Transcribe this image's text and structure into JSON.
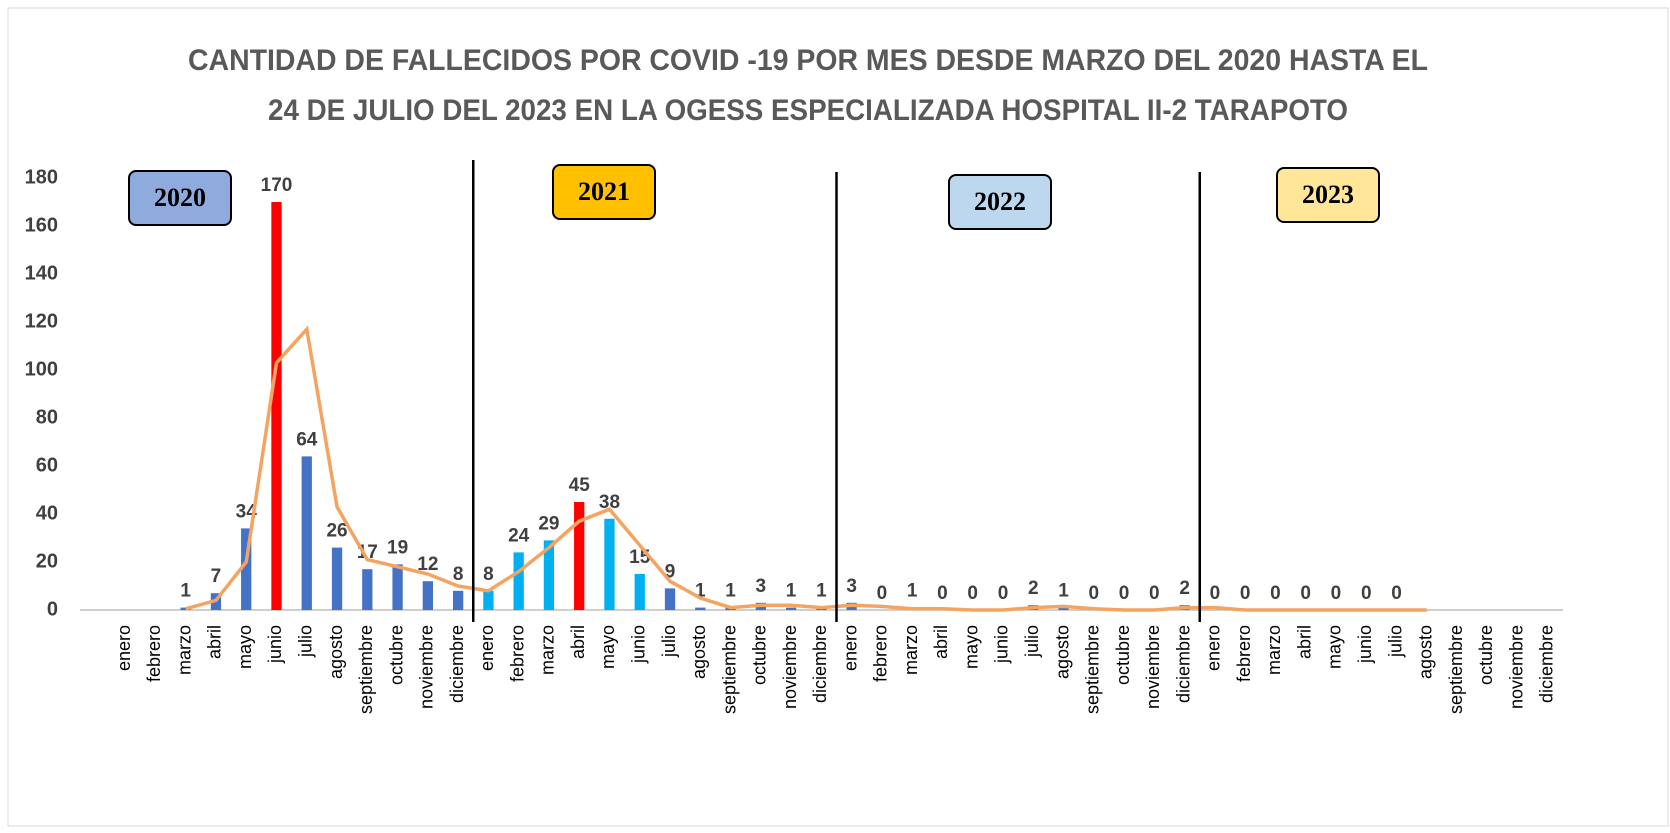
{
  "chart_data": {
    "type": "bar",
    "title": [
      "CANTIDAD DE FALLECIDOS POR COVID -19  POR MES  DESDE MARZO DEL 2020 HASTA EL",
      "24 DE JULIO DEL 2023 EN LA OGESS ESPECIALIZADA HOSPITAL II-2 TARAPOTO"
    ],
    "categories": [
      "enero",
      "febrero",
      "marzo",
      "abril",
      "mayo",
      "junio",
      "julio",
      "agosto",
      "septiembre",
      "octubre",
      "noviembre",
      "diciembre",
      "enero",
      "febrero",
      "marzo",
      "abril",
      "mayo",
      "junio",
      "julio",
      "agosto",
      "septiembre",
      "octubre",
      "noviembre",
      "diciembre",
      "enero",
      "febrero",
      "marzo",
      "abril",
      "mayo",
      "junio",
      "julio",
      "agosto",
      "septiembre",
      "octubre",
      "noviembre",
      "diciembre",
      "enero",
      "febrero",
      "marzo",
      "abril",
      "mayo",
      "junio",
      "julio",
      "agosto",
      "septiembre",
      "octubre",
      "noviembre",
      "diciembre"
    ],
    "values": [
      null,
      null,
      1,
      7,
      34,
      170,
      64,
      26,
      17,
      19,
      12,
      8,
      8,
      24,
      29,
      45,
      38,
      15,
      9,
      1,
      1,
      3,
      1,
      1,
      3,
      0,
      1,
      0,
      0,
      0,
      2,
      1,
      0,
      0,
      0,
      2,
      0,
      0,
      0,
      0,
      0,
      0,
      0,
      null,
      null,
      null,
      null,
      null
    ],
    "colors": [
      "#4472c4",
      "#4472c4",
      "#4472c4",
      "#4472c4",
      "#4472c4",
      "#ff0000",
      "#4472c4",
      "#4472c4",
      "#4472c4",
      "#4472c4",
      "#4472c4",
      "#4472c4",
      "#00b0f0",
      "#00b0f0",
      "#00b0f0",
      "#ff0000",
      "#00b0f0",
      "#00b0f0",
      "#4472c4",
      "#4472c4",
      "#4472c4",
      "#4472c4",
      "#4472c4",
      "#4472c4",
      "#4472c4",
      "#4472c4",
      "#4472c4",
      "#4472c4",
      "#4472c4",
      "#4472c4",
      "#4472c4",
      "#4472c4",
      "#4472c4",
      "#4472c4",
      "#4472c4",
      "#4472c4",
      "#4472c4",
      "#4472c4",
      "#4472c4",
      "#4472c4",
      "#4472c4",
      "#4472c4",
      "#4472c4",
      "#4472c4",
      "#4472c4",
      "#4472c4",
      "#4472c4",
      "#4472c4"
    ],
    "line": {
      "color": "#f4a460",
      "values": [
        null,
        null,
        0.5,
        4,
        20,
        103,
        117,
        43,
        21,
        18,
        15,
        10,
        8,
        16,
        26,
        37,
        42,
        27,
        12,
        5,
        1,
        2,
        2,
        1,
        2,
        1.5,
        0.5,
        0.5,
        0,
        0,
        1,
        1.5,
        0.5,
        0,
        0,
        1,
        1,
        0,
        0,
        0,
        0,
        0,
        0,
        0,
        null,
        null,
        null,
        null
      ]
    },
    "annotations": [
      {
        "text": "2020",
        "color": "#8faadc"
      },
      {
        "text": "2021",
        "color": "#ffc000"
      },
      {
        "text": "2022",
        "color": "#bdd7ee"
      },
      {
        "text": "2023",
        "color": "#ffe699"
      }
    ],
    "ylim": [
      0,
      180
    ],
    "yticks": [
      0,
      20,
      40,
      60,
      80,
      100,
      120,
      140,
      160,
      180
    ],
    "grid": false
  }
}
